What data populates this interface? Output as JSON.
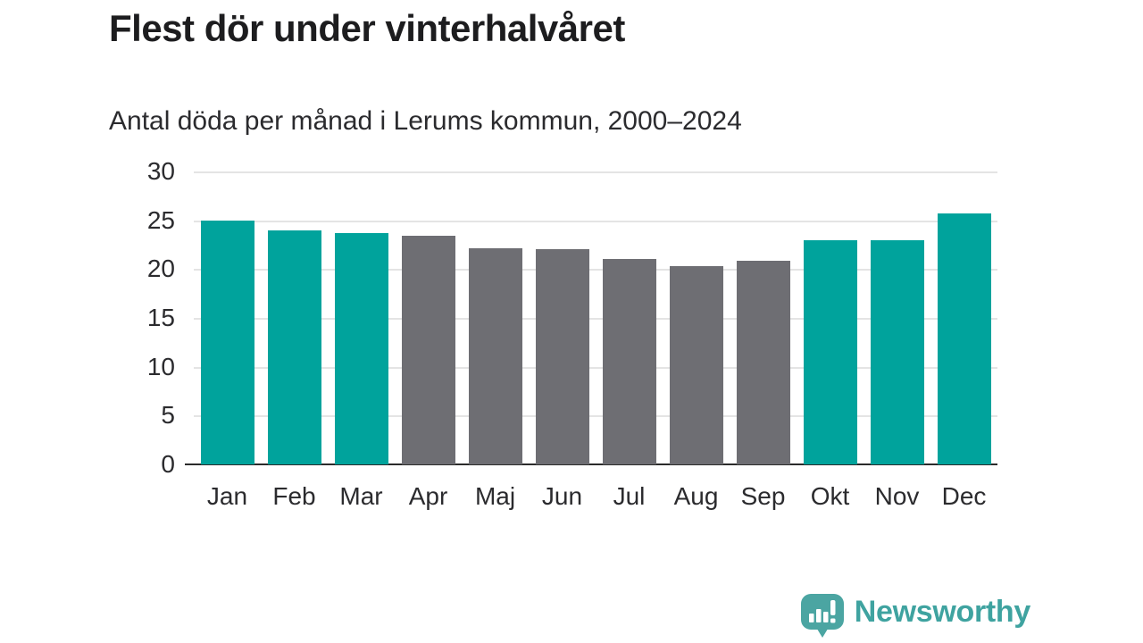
{
  "header": {
    "title": "Flest dör under vinterhalvåret",
    "subtitle": "Antal döda per månad i Lerums kommun, 2000–2024"
  },
  "chart_data": {
    "type": "bar",
    "title": "Flest dör under vinterhalvåret",
    "subtitle": "Antal döda per månad i Lerums kommun, 2000–2024",
    "categories": [
      "Jan",
      "Feb",
      "Mar",
      "Apr",
      "Maj",
      "Jun",
      "Jul",
      "Aug",
      "Sep",
      "Okt",
      "Nov",
      "Dec"
    ],
    "values": [
      25.0,
      24.0,
      23.7,
      23.4,
      22.1,
      22.0,
      21.0,
      20.3,
      20.9,
      23.0,
      23.0,
      25.7
    ],
    "bar_color_keys": [
      "winter",
      "winter",
      "winter",
      "summer",
      "summer",
      "summer",
      "summer",
      "summer",
      "summer",
      "winter",
      "winter",
      "winter"
    ],
    "palette": {
      "winter": "#00a39c",
      "summer": "#6e6e73"
    },
    "xlabel": "",
    "ylabel": "",
    "ylim": [
      0,
      30
    ],
    "yticks": [
      0,
      5,
      10,
      15,
      20,
      25,
      30
    ],
    "grid": true,
    "legend": false,
    "gridline_color": "#e4e4e4",
    "axis_color": "#2b2b2b",
    "label_color": "#2b2b2e"
  },
  "footer": {
    "brand": "Newsworthy",
    "brand_color": "#3fa3a0"
  }
}
